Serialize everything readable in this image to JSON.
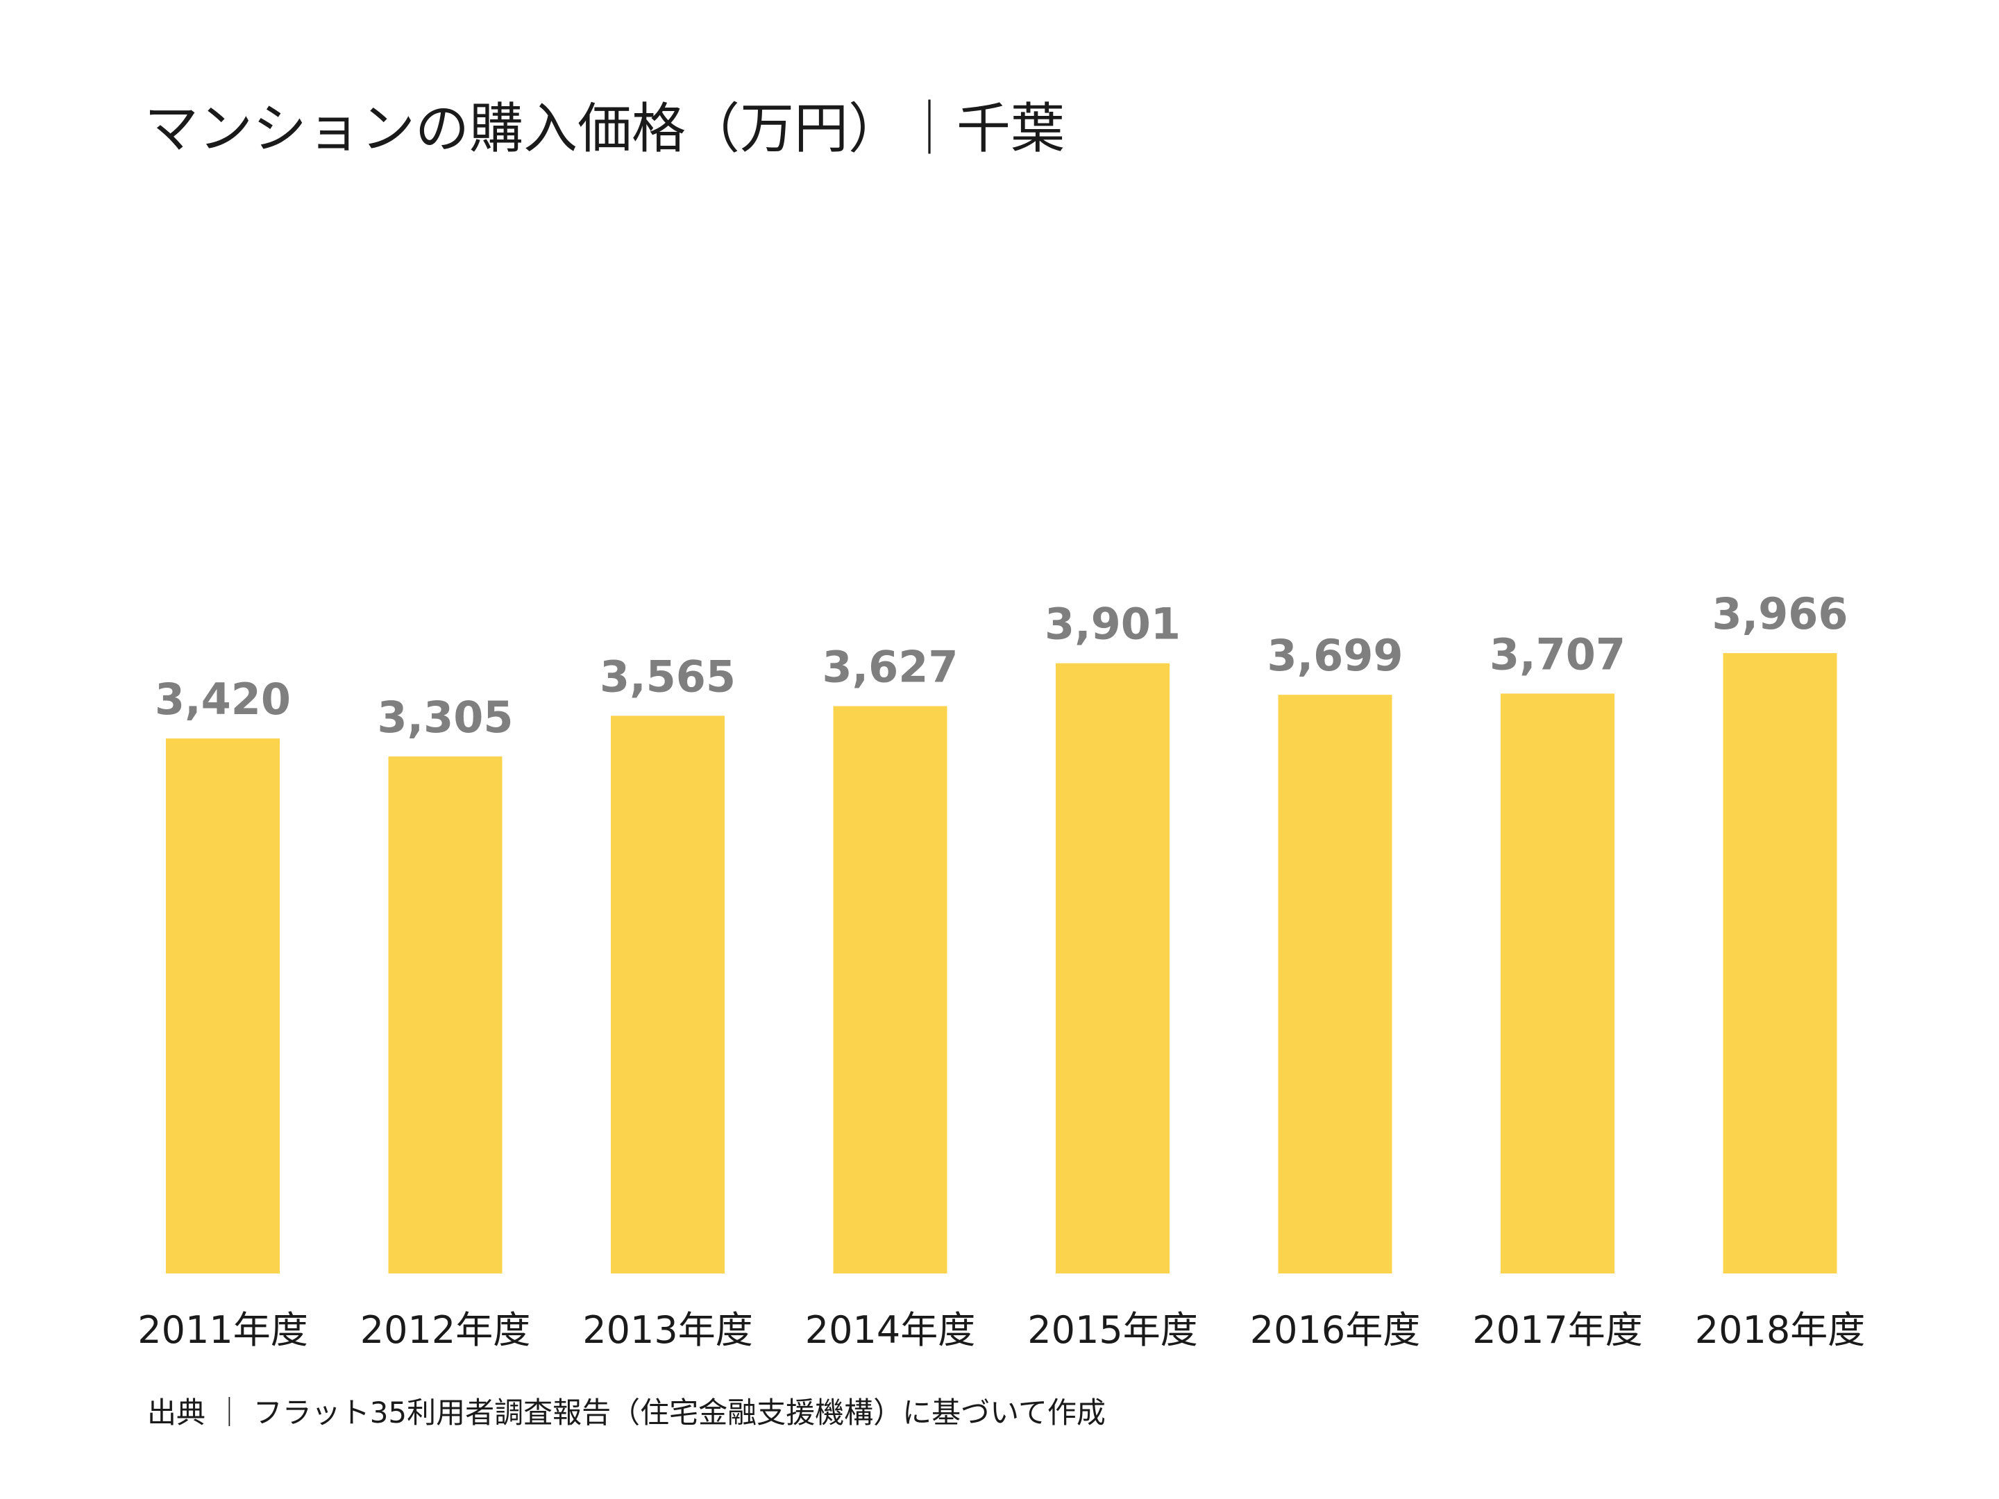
{
  "chart_data": {
    "type": "bar",
    "title": "マンションの購入価格（万円）｜千葉",
    "categories": [
      "2011年度",
      "2012年度",
      "2013年度",
      "2014年度",
      "2015年度",
      "2016年度",
      "2017年度",
      "2018年度"
    ],
    "values": [
      3420,
      3305,
      3565,
      3627,
      3901,
      3699,
      3707,
      3966
    ],
    "value_labels": [
      "3,420",
      "3,305",
      "3,565",
      "3,627",
      "3,901",
      "3,699",
      "3,707",
      "3,966"
    ],
    "xlabel": "",
    "ylabel": "",
    "grid": false,
    "legend": "none",
    "bar_color": "#fcd34d",
    "value_label_color": "#7f7f7f"
  },
  "footer": {
    "source": "出典 ｜ フラット35利用者調査報告（住宅金融支援機構）に基づいて作成"
  }
}
